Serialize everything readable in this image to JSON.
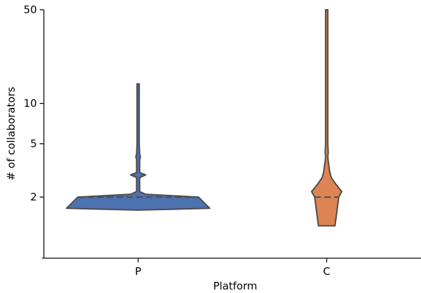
{
  "chart_data": {
    "type": "violin",
    "xlabel": "Platform",
    "ylabel": "# of collaborators",
    "yscale": "log",
    "ylim": [
      0.7,
      50
    ],
    "yticks": [
      2,
      5,
      10,
      50
    ],
    "ytick_labels": [
      "2",
      "5",
      "10",
      "50"
    ],
    "categories": [
      "P",
      "C"
    ],
    "inner": "quartile (dashed median line)",
    "grid": false,
    "violins": [
      {
        "category": "P",
        "color": "#4C72B0",
        "median": 2,
        "max": 14,
        "min": 1.6,
        "profile": [
          [
            1.6,
            0.0
          ],
          [
            1.65,
            0.95
          ],
          [
            2.0,
            0.8
          ],
          [
            2.1,
            0.1
          ],
          [
            2.2,
            0.02
          ],
          [
            2.8,
            0.02
          ],
          [
            2.93,
            0.1
          ],
          [
            3.05,
            0.02
          ],
          [
            3.2,
            0.02
          ],
          [
            3.8,
            0.02
          ],
          [
            4.0,
            0.03
          ],
          [
            4.2,
            0.02
          ],
          [
            5.0,
            0.015
          ],
          [
            14.0,
            0.015
          ]
        ]
      },
      {
        "category": "C",
        "color": "#DD8452",
        "median": 2,
        "max": 50,
        "min": 1.22,
        "profile": [
          [
            1.22,
            0.11
          ],
          [
            2.0,
            0.16
          ],
          [
            2.2,
            0.2
          ],
          [
            2.5,
            0.12
          ],
          [
            2.8,
            0.06
          ],
          [
            3.1,
            0.04
          ],
          [
            3.4,
            0.03
          ],
          [
            3.7,
            0.02
          ],
          [
            4.0,
            0.015
          ],
          [
            4.3,
            0.02
          ],
          [
            5.0,
            0.015
          ],
          [
            50.0,
            0.015
          ]
        ]
      }
    ]
  }
}
